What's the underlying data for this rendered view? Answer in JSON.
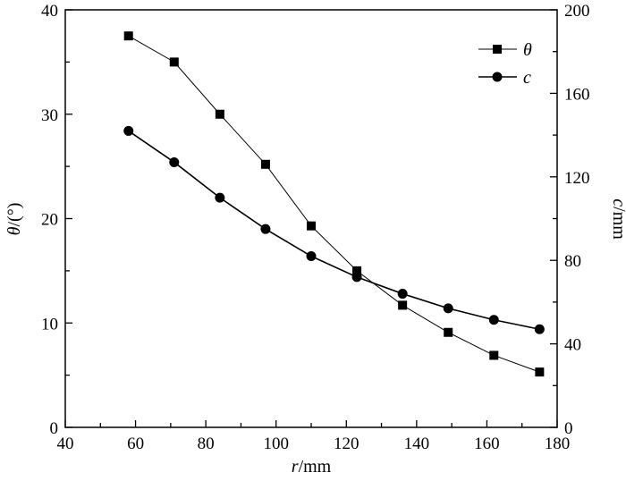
{
  "chart_data": {
    "type": "line",
    "title": "",
    "xlabel": "r/mm",
    "xlabel_var": "r",
    "xlabel_unit": "/mm",
    "ylabel_left": "θ/(°)",
    "ylabel_left_var": "θ",
    "ylabel_left_unit": "/(°)",
    "ylabel_right": "c/mm",
    "ylabel_right_var": "c",
    "ylabel_right_unit": "/mm",
    "xlim": [
      40,
      180
    ],
    "ylim_left": [
      0,
      40
    ],
    "ylim_right": [
      0,
      200
    ],
    "x_ticks": [
      "40",
      "60",
      "80",
      "100",
      "120",
      "140",
      "160",
      "180"
    ],
    "y_left_ticks": [
      "0",
      "10",
      "20",
      "30",
      "40"
    ],
    "y_right_ticks": [
      "0",
      "40",
      "80",
      "120",
      "160",
      "200"
    ],
    "grid": false,
    "legend_position": "top-right",
    "x": [
      58,
      71,
      84,
      97,
      110,
      123,
      136,
      149,
      162,
      175
    ],
    "series": [
      {
        "name": "θ",
        "axis": "left",
        "marker": "square",
        "color": "#000000",
        "values": [
          37.5,
          35.0,
          30.0,
          25.2,
          19.3,
          15.0,
          11.7,
          9.1,
          6.9,
          5.3
        ]
      },
      {
        "name": "c",
        "axis": "right",
        "marker": "circle",
        "color": "#000000",
        "values": [
          142,
          127,
          110,
          95,
          82,
          72,
          64,
          57,
          51.5,
          47
        ]
      }
    ]
  }
}
